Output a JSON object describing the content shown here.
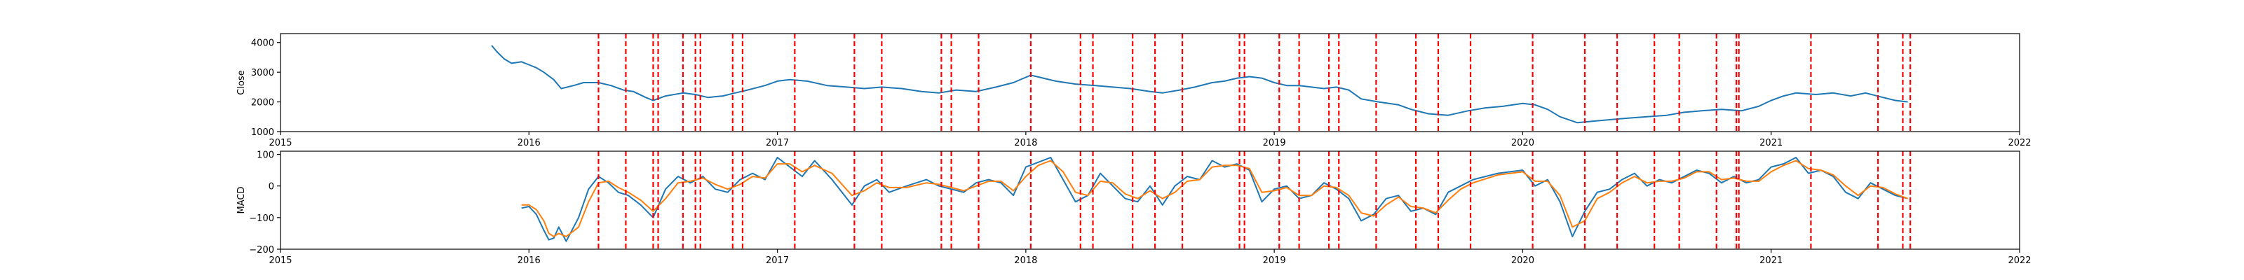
{
  "colors": {
    "close": "#1f77b4",
    "macd": "#1f77b4",
    "signal": "#ff7f0e",
    "event_lines": "#ff0000",
    "axes": "#000000"
  },
  "chart_data": [
    {
      "type": "line",
      "ylabel": "Close",
      "xlabel": "",
      "xlim": [
        2015.0,
        2022.0
      ],
      "ylim": [
        1000,
        4300
      ],
      "x_ticks": [
        2015,
        2016,
        2017,
        2018,
        2019,
        2020,
        2021,
        2022
      ],
      "x_tick_labels": [
        "2015",
        "2016",
        "2017",
        "2018",
        "2019",
        "2020",
        "2021",
        "2022"
      ],
      "y_ticks": [
        1000,
        2000,
        3000,
        4000
      ],
      "y_tick_labels": [
        "1000",
        "2000",
        "3000",
        "4000"
      ],
      "grid": false,
      "series": [
        {
          "color": "#1f77b4",
          "x": [
            2015.85,
            2015.87,
            2015.9,
            2015.93,
            2015.97,
            2016.0,
            2016.03,
            2016.06,
            2016.1,
            2016.13,
            2016.18,
            2016.22,
            2016.28,
            2016.33,
            2016.38,
            2016.42,
            2016.47,
            2016.5,
            2016.55,
            2016.62,
            2016.67,
            2016.72,
            2016.78,
            2016.83,
            2016.88,
            2016.95,
            2017.0,
            2017.05,
            2017.12,
            2017.2,
            2017.28,
            2017.35,
            2017.42,
            2017.5,
            2017.58,
            2017.65,
            2017.72,
            2017.8,
            2017.88,
            2017.95,
            2018.02,
            2018.07,
            2018.12,
            2018.2,
            2018.28,
            2018.35,
            2018.42,
            2018.5,
            2018.55,
            2018.62,
            2018.68,
            2018.75,
            2018.8,
            2018.85,
            2018.9,
            2018.95,
            2019.0,
            2019.05,
            2019.1,
            2019.15,
            2019.2,
            2019.25,
            2019.3,
            2019.35,
            2019.42,
            2019.5,
            2019.55,
            2019.62,
            2019.7,
            2019.78,
            2019.85,
            2019.92,
            2020.0,
            2020.05,
            2020.1,
            2020.15,
            2020.22,
            2020.28,
            2020.35,
            2020.42,
            2020.5,
            2020.58,
            2020.65,
            2020.72,
            2020.8,
            2020.88,
            2020.95,
            2021.0,
            2021.05,
            2021.1,
            2021.18,
            2021.25,
            2021.32,
            2021.38,
            2021.45,
            2021.5,
            2021.55
          ],
          "values": [
            3900,
            3700,
            3450,
            3300,
            3350,
            3250,
            3150,
            3000,
            2750,
            2450,
            2550,
            2650,
            2650,
            2550,
            2400,
            2350,
            2150,
            2050,
            2200,
            2300,
            2250,
            2150,
            2200,
            2300,
            2400,
            2550,
            2700,
            2750,
            2700,
            2550,
            2500,
            2450,
            2500,
            2450,
            2350,
            2300,
            2400,
            2350,
            2500,
            2650,
            2900,
            2800,
            2700,
            2600,
            2550,
            2500,
            2450,
            2350,
            2300,
            2400,
            2500,
            2650,
            2700,
            2800,
            2850,
            2800,
            2650,
            2550,
            2550,
            2500,
            2450,
            2500,
            2400,
            2100,
            2000,
            1900,
            1750,
            1600,
            1550,
            1700,
            1800,
            1850,
            1950,
            1900,
            1750,
            1500,
            1300,
            1350,
            1400,
            1450,
            1500,
            1550,
            1650,
            1700,
            1750,
            1700,
            1850,
            2050,
            2200,
            2300,
            2250,
            2300,
            2200,
            2300,
            2150,
            2050,
            2000
          ]
        }
      ],
      "event_lines_x": [
        2016.28,
        2016.39,
        2016.5,
        2016.52,
        2016.62,
        2016.67,
        2016.69,
        2016.82,
        2016.86,
        2017.07,
        2017.31,
        2017.42,
        2017.66,
        2017.7,
        2017.81,
        2018.02,
        2018.22,
        2018.27,
        2018.43,
        2018.52,
        2018.63,
        2018.86,
        2018.88,
        2019.02,
        2019.1,
        2019.22,
        2019.26,
        2019.41,
        2019.57,
        2019.66,
        2019.79,
        2020.04,
        2020.25,
        2020.38,
        2020.53,
        2020.63,
        2020.78,
        2020.86,
        2020.87,
        2021.16,
        2021.43,
        2021.53,
        2021.56
      ]
    },
    {
      "type": "line",
      "ylabel": "MACD",
      "xlabel": "",
      "xlim": [
        2015.0,
        2022.0
      ],
      "ylim": [
        -200,
        110
      ],
      "x_ticks": [
        2015,
        2016,
        2017,
        2018,
        2019,
        2020,
        2021,
        2022
      ],
      "x_tick_labels": [
        "2015",
        "2016",
        "2017",
        "2018",
        "2019",
        "2020",
        "2021",
        "2022"
      ],
      "y_ticks": [
        -200,
        -100,
        0,
        100
      ],
      "y_tick_labels": [
        "−200",
        "−100",
        "0",
        "100"
      ],
      "grid": false,
      "series": [
        {
          "color": "#1f77b4",
          "x": [
            2015.97,
            2016.0,
            2016.03,
            2016.06,
            2016.08,
            2016.1,
            2016.12,
            2016.15,
            2016.2,
            2016.24,
            2016.28,
            2016.32,
            2016.36,
            2016.4,
            2016.45,
            2016.5,
            2016.55,
            2016.6,
            2016.65,
            2016.7,
            2016.75,
            2016.8,
            2016.85,
            2016.9,
            2016.95,
            2017.0,
            2017.05,
            2017.1,
            2017.15,
            2017.22,
            2017.3,
            2017.35,
            2017.4,
            2017.45,
            2017.52,
            2017.6,
            2017.65,
            2017.7,
            2017.75,
            2017.8,
            2017.85,
            2017.9,
            2017.95,
            2018.0,
            2018.05,
            2018.1,
            2018.15,
            2018.2,
            2018.25,
            2018.3,
            2018.35,
            2018.4,
            2018.45,
            2018.5,
            2018.55,
            2018.6,
            2018.65,
            2018.7,
            2018.75,
            2018.8,
            2018.85,
            2018.9,
            2018.95,
            2019.0,
            2019.05,
            2019.1,
            2019.15,
            2019.2,
            2019.25,
            2019.3,
            2019.35,
            2019.4,
            2019.45,
            2019.5,
            2019.55,
            2019.6,
            2019.65,
            2019.7,
            2019.75,
            2019.8,
            2019.9,
            2020.0,
            2020.05,
            2020.1,
            2020.15,
            2020.2,
            2020.25,
            2020.3,
            2020.35,
            2020.4,
            2020.45,
            2020.5,
            2020.55,
            2020.6,
            2020.65,
            2020.7,
            2020.75,
            2020.8,
            2020.85,
            2020.9,
            2020.95,
            2021.0,
            2021.05,
            2021.1,
            2021.15,
            2021.2,
            2021.25,
            2021.3,
            2021.35,
            2021.4,
            2021.45,
            2021.5,
            2021.55
          ],
          "values": [
            -70,
            -65,
            -90,
            -140,
            -170,
            -165,
            -130,
            -175,
            -100,
            -10,
            30,
            10,
            -20,
            -30,
            -60,
            -100,
            -10,
            30,
            10,
            30,
            -10,
            -20,
            20,
            40,
            20,
            90,
            60,
            30,
            80,
            20,
            -60,
            0,
            20,
            -20,
            0,
            20,
            0,
            -10,
            -20,
            10,
            20,
            10,
            -30,
            60,
            75,
            90,
            20,
            -50,
            -30,
            40,
            0,
            -40,
            -50,
            0,
            -60,
            0,
            30,
            20,
            80,
            60,
            70,
            50,
            -50,
            -10,
            0,
            -40,
            -30,
            10,
            -10,
            -40,
            -110,
            -90,
            -40,
            -30,
            -80,
            -70,
            -90,
            -20,
            0,
            20,
            40,
            50,
            0,
            20,
            -50,
            -160,
            -80,
            -20,
            -10,
            20,
            40,
            0,
            20,
            10,
            30,
            50,
            40,
            10,
            30,
            10,
            20,
            60,
            70,
            90,
            40,
            50,
            30,
            -20,
            -40,
            10,
            -10,
            -30,
            -40
          ]
        },
        {
          "color": "#ff7f0e",
          "x": [
            2015.97,
            2016.0,
            2016.03,
            2016.06,
            2016.08,
            2016.1,
            2016.12,
            2016.15,
            2016.2,
            2016.24,
            2016.28,
            2016.32,
            2016.36,
            2016.4,
            2016.45,
            2016.5,
            2016.55,
            2016.6,
            2016.65,
            2016.7,
            2016.75,
            2016.8,
            2016.85,
            2016.9,
            2016.95,
            2017.0,
            2017.05,
            2017.1,
            2017.15,
            2017.22,
            2017.3,
            2017.35,
            2017.4,
            2017.45,
            2017.52,
            2017.6,
            2017.65,
            2017.7,
            2017.75,
            2017.8,
            2017.85,
            2017.9,
            2017.95,
            2018.0,
            2018.05,
            2018.1,
            2018.15,
            2018.2,
            2018.25,
            2018.3,
            2018.35,
            2018.4,
            2018.45,
            2018.5,
            2018.55,
            2018.6,
            2018.65,
            2018.7,
            2018.75,
            2018.8,
            2018.85,
            2018.9,
            2018.95,
            2019.0,
            2019.05,
            2019.1,
            2019.15,
            2019.2,
            2019.25,
            2019.3,
            2019.35,
            2019.4,
            2019.45,
            2019.5,
            2019.55,
            2019.6,
            2019.65,
            2019.7,
            2019.75,
            2019.8,
            2019.9,
            2020.0,
            2020.05,
            2020.1,
            2020.15,
            2020.2,
            2020.25,
            2020.3,
            2020.35,
            2020.4,
            2020.45,
            2020.5,
            2020.55,
            2020.6,
            2020.65,
            2020.7,
            2020.75,
            2020.8,
            2020.85,
            2020.9,
            2020.95,
            2021.0,
            2021.05,
            2021.1,
            2021.15,
            2021.2,
            2021.25,
            2021.3,
            2021.35,
            2021.4,
            2021.45,
            2021.5,
            2021.55
          ],
          "values": [
            -60,
            -60,
            -75,
            -110,
            -150,
            -160,
            -150,
            -160,
            -130,
            -50,
            10,
            15,
            -5,
            -20,
            -45,
            -80,
            -40,
            10,
            15,
            25,
            5,
            -10,
            5,
            30,
            25,
            70,
            70,
            45,
            65,
            40,
            -30,
            -15,
            10,
            -5,
            -5,
            10,
            5,
            -5,
            -15,
            0,
            15,
            15,
            -15,
            30,
            65,
            80,
            45,
            -20,
            -30,
            15,
            10,
            -25,
            -40,
            -15,
            -40,
            -20,
            15,
            20,
            60,
            65,
            65,
            55,
            -20,
            -15,
            -5,
            -30,
            -30,
            0,
            -5,
            -30,
            -85,
            -95,
            -60,
            -35,
            -65,
            -70,
            -85,
            -45,
            -10,
            10,
            35,
            45,
            15,
            15,
            -30,
            -130,
            -110,
            -40,
            -20,
            10,
            30,
            10,
            15,
            15,
            25,
            45,
            45,
            20,
            25,
            15,
            15,
            45,
            65,
            80,
            55,
            50,
            35,
            0,
            -30,
            0,
            -5,
            -25,
            -40
          ]
        }
      ],
      "event_lines_x": [
        2016.28,
        2016.39,
        2016.5,
        2016.52,
        2016.62,
        2016.67,
        2016.69,
        2016.82,
        2016.86,
        2017.07,
        2017.31,
        2017.42,
        2017.66,
        2017.7,
        2017.81,
        2018.02,
        2018.22,
        2018.27,
        2018.43,
        2018.52,
        2018.63,
        2018.86,
        2018.88,
        2019.02,
        2019.1,
        2019.22,
        2019.26,
        2019.41,
        2019.57,
        2019.66,
        2019.79,
        2020.04,
        2020.25,
        2020.38,
        2020.53,
        2020.63,
        2020.78,
        2020.86,
        2020.87,
        2021.16,
        2021.43,
        2021.53,
        2021.56
      ]
    }
  ]
}
